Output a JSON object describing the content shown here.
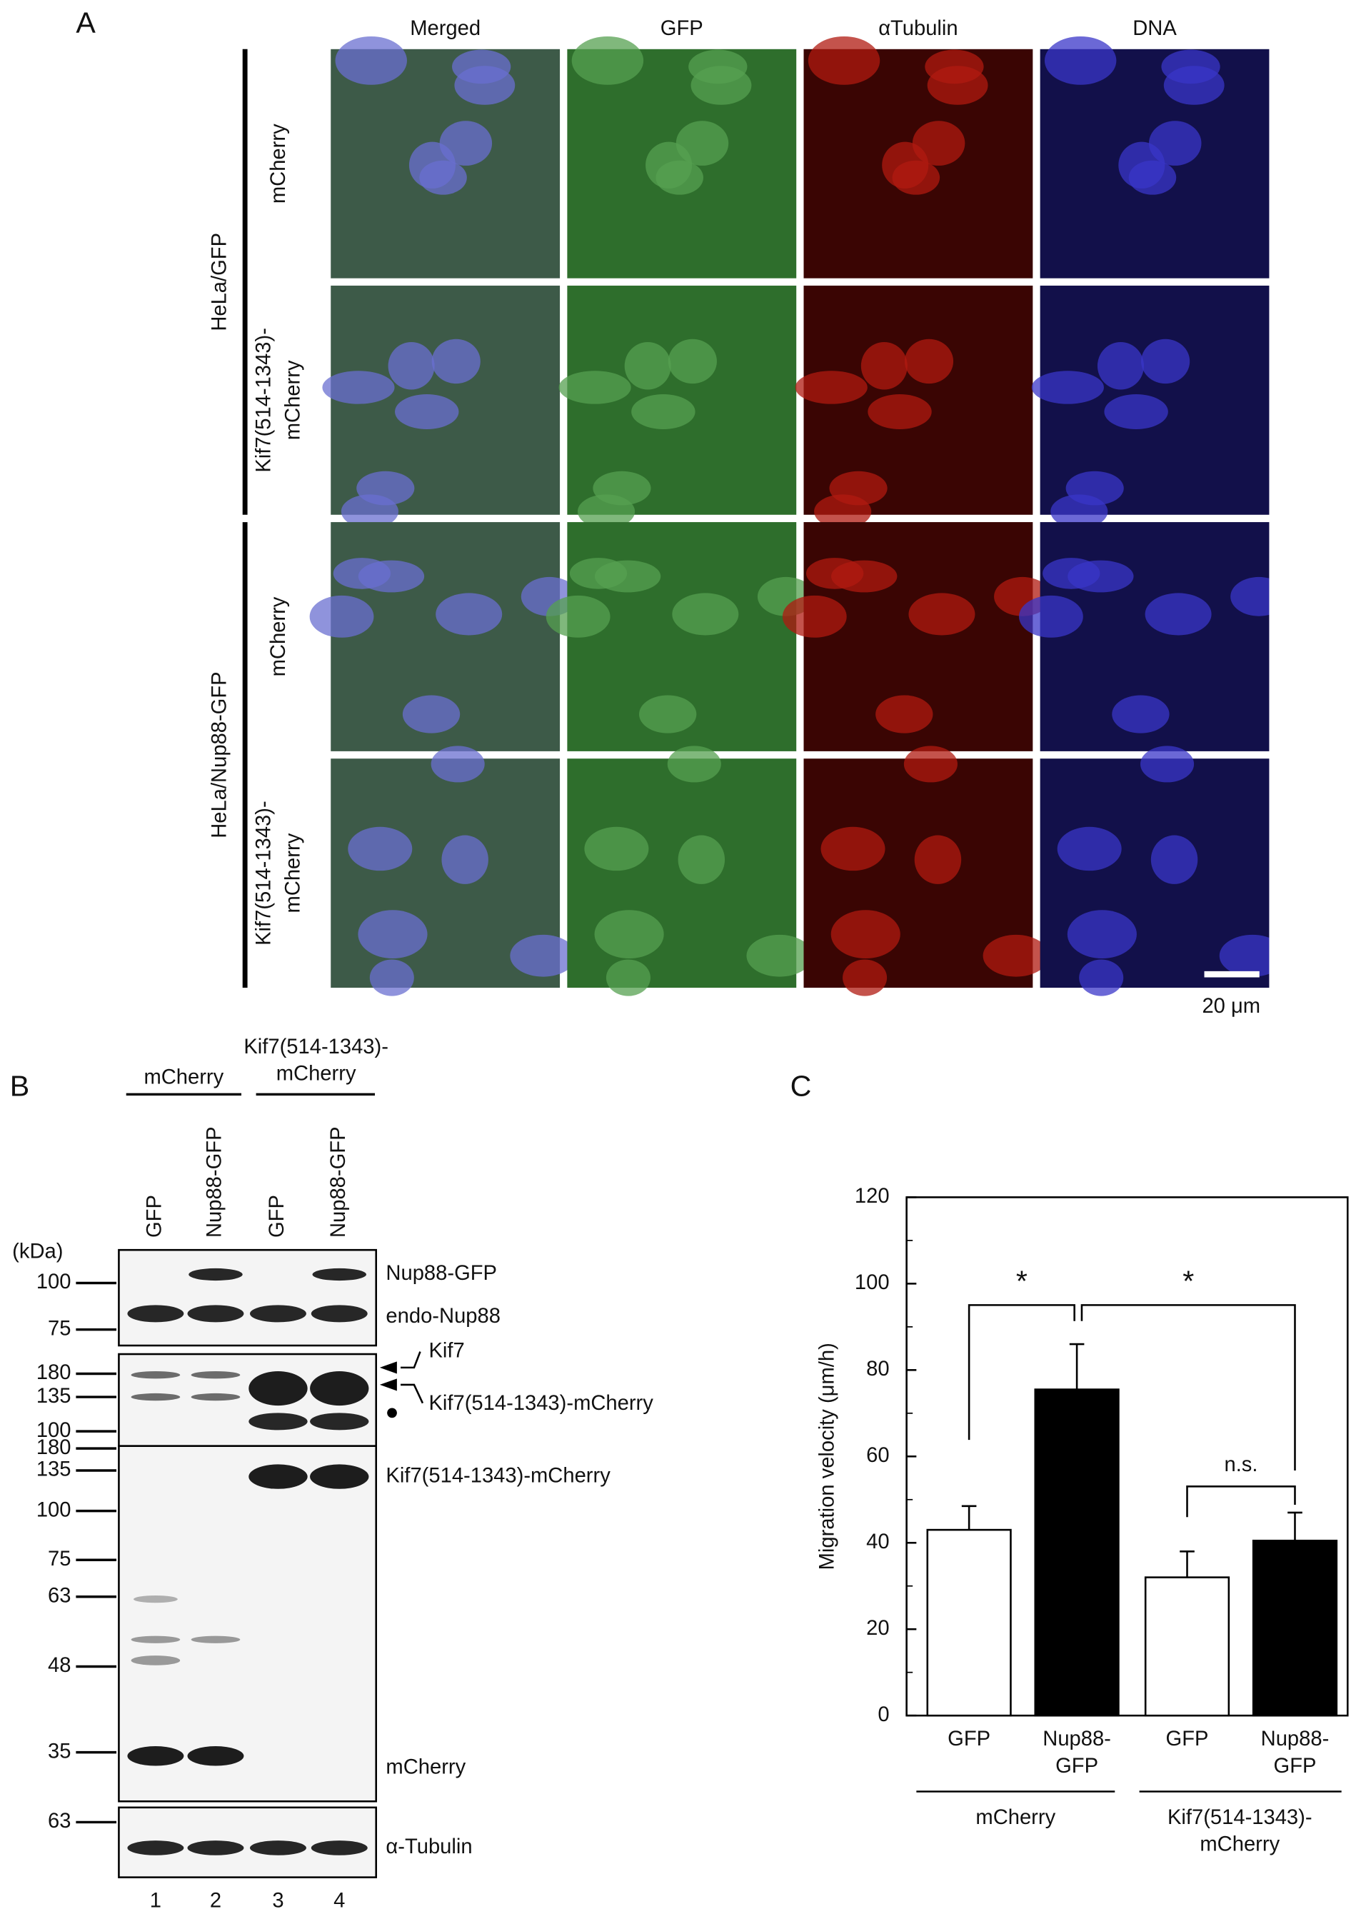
{
  "panel_a": {
    "letter": "A",
    "columns": [
      "Merged",
      "GFP",
      "αTubulin",
      "DNA"
    ],
    "groups": [
      {
        "label": "HeLa/GFP",
        "rows": [
          [
            "mCherry"
          ],
          [
            "Kif7(514-1343)-",
            "mCherry"
          ]
        ]
      },
      {
        "label": "HeLa/Nup88-GFP",
        "rows": [
          [
            "mCherry"
          ],
          [
            "Kif7(514-1343)-",
            "mCherry"
          ]
        ]
      }
    ],
    "scale_bar": "20 μm"
  },
  "panel_b": {
    "letter": "B",
    "unit": "(kDa)",
    "groups": [
      [
        "mCherry"
      ],
      [
        "Kif7(514-1343)-",
        "mCherry"
      ]
    ],
    "lanes": [
      "GFP",
      "Nup88-GFP",
      "GFP",
      "Nup88-GFP"
    ],
    "lane_numbers": [
      "1",
      "2",
      "3",
      "4"
    ],
    "blots": [
      {
        "markers": [
          100,
          75
        ],
        "bands": [
          "Nup88-GFP",
          "endo-Nup88"
        ]
      },
      {
        "markers": [
          180,
          135,
          100
        ],
        "bands": [
          "Kif7",
          "Kif7(514-1343)-mCherry"
        ]
      },
      {
        "markers": [
          180,
          135,
          100,
          75,
          63,
          48,
          35
        ],
        "bands": [
          "Kif7(514-1343)-mCherry",
          "mCherry"
        ]
      },
      {
        "markers": [
          63
        ],
        "bands": [
          "α-Tubulin"
        ]
      }
    ]
  },
  "chart_data": {
    "type": "bar",
    "letter": "C",
    "y_label": "Migration velocity (μm/h)",
    "categories": [
      [
        "GFP"
      ],
      [
        "Nup88-",
        "GFP"
      ],
      [
        "GFP"
      ],
      [
        "Nup88-",
        "GFP"
      ]
    ],
    "groups": [
      [
        "mCherry"
      ],
      [
        "Kif7(514-1343)-",
        "mCherry"
      ]
    ],
    "values": [
      43,
      75.5,
      32,
      40.5
    ],
    "errors": [
      5.5,
      10.5,
      6,
      6.5
    ],
    "colors": [
      "#ffffff",
      "#000000",
      "#ffffff",
      "#000000"
    ],
    "ylim": [
      0,
      120
    ],
    "yticks": [
      0,
      20,
      40,
      60,
      80,
      100,
      120
    ],
    "annotations": [
      "*",
      "*",
      "n.s."
    ]
  }
}
